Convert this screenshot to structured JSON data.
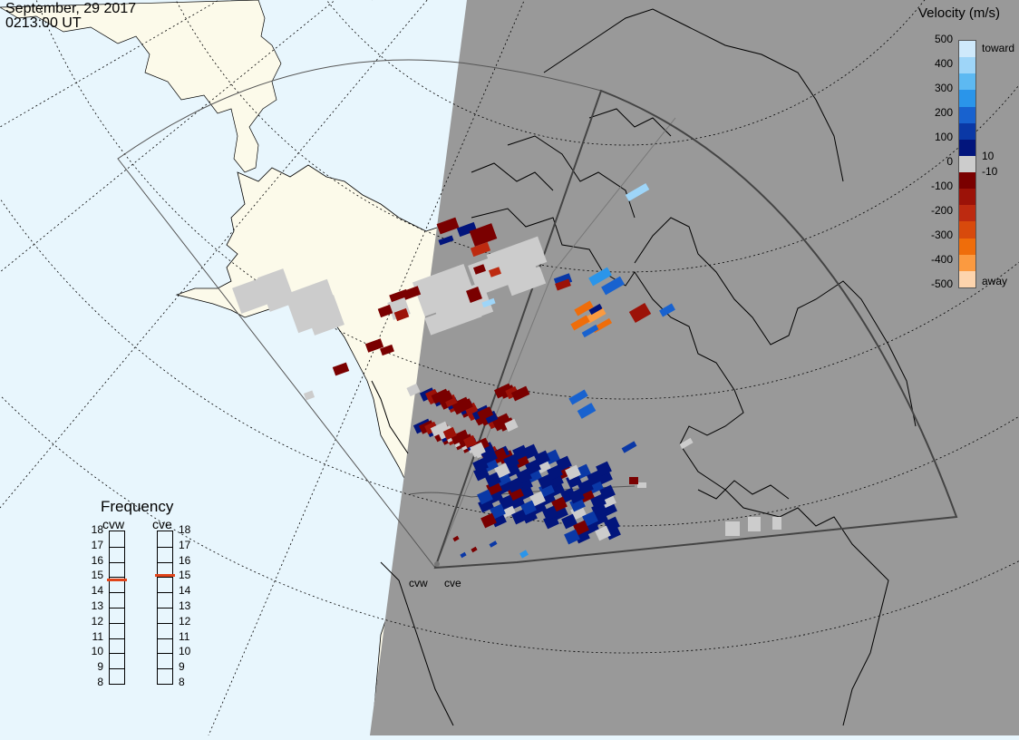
{
  "header": {
    "date": "September, 29 2017",
    "time": "0213:00 UT"
  },
  "colors": {
    "ocean": "#e8f6fd",
    "land": "#fcfaea",
    "night": "#999999",
    "coast": "#000000",
    "ground_scatter": "#cccccc"
  },
  "velocity_scale": {
    "title": "Velocity (m/s)",
    "ticks": [
      "500",
      "400",
      "300",
      "200",
      "100",
      "0",
      "-100",
      "-200",
      "-300",
      "-400",
      "-500"
    ],
    "inner_ticks": [
      "10",
      "-10"
    ],
    "toward_label": "toward",
    "away_label": "away",
    "colors": [
      "#cfe9fb",
      "#9ed5f8",
      "#5db9f2",
      "#2a95ea",
      "#1862cf",
      "#0a38a6",
      "#02157c",
      "#cccccc",
      "#7a0000",
      "#9c1208",
      "#bd2a10",
      "#d84a0c",
      "#ef6d0a",
      "#fb9a40",
      "#fdd4ad"
    ]
  },
  "frequency": {
    "title": "Frequency",
    "radars": [
      {
        "name": "cvw",
        "value_mhz": 14.8
      },
      {
        "name": "cve",
        "value_mhz": 15.1
      }
    ],
    "ticks": [
      "18",
      "17",
      "16",
      "15",
      "14",
      "13",
      "12",
      "11",
      "10",
      "9",
      "8"
    ]
  },
  "radars": [
    {
      "name": "cvw"
    },
    {
      "name": "cve"
    }
  ],
  "map": {
    "projection": "polar stereographic",
    "grid": "dotted lat/lon",
    "terminator": "day/night shading"
  }
}
